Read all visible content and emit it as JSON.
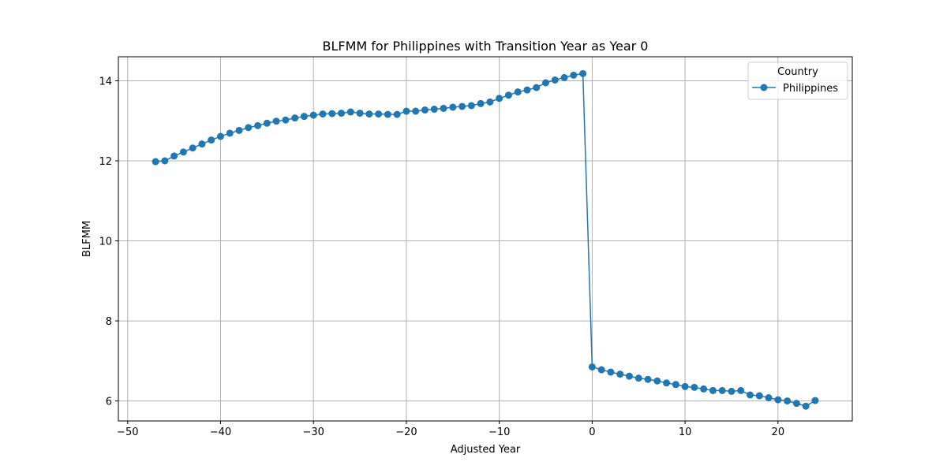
{
  "chart_data": {
    "type": "line",
    "title": "BLFMM for Philippines with Transition Year as Year 0",
    "xlabel": "Adjusted Year",
    "ylabel": "BLFMM",
    "xlim": [
      -51,
      28
    ],
    "ylim": [
      5.5,
      14.6
    ],
    "xticks": [
      -50,
      -40,
      -30,
      -20,
      -10,
      0,
      10,
      20
    ],
    "yticks": [
      6,
      8,
      10,
      12,
      14
    ],
    "grid": true,
    "legend": {
      "title": "Country",
      "placement": "top-right"
    },
    "series": [
      {
        "name": "Philippines",
        "color": "#1f77b4",
        "marker": "circle",
        "x": [
          -47,
          -46,
          -45,
          -44,
          -43,
          -42,
          -41,
          -40,
          -39,
          -38,
          -37,
          -36,
          -35,
          -34,
          -33,
          -32,
          -31,
          -30,
          -29,
          -28,
          -27,
          -26,
          -25,
          -24,
          -23,
          -22,
          -21,
          -20,
          -19,
          -18,
          -17,
          -16,
          -15,
          -14,
          -13,
          -12,
          -11,
          -10,
          -9,
          -8,
          -7,
          -6,
          -5,
          -4,
          -3,
          -2,
          -1,
          0,
          1,
          2,
          3,
          4,
          5,
          6,
          7,
          8,
          9,
          10,
          11,
          12,
          13,
          14,
          15,
          16,
          17,
          18,
          19,
          20,
          21,
          22,
          23,
          24
        ],
        "values": [
          11.98,
          12.0,
          12.12,
          12.22,
          12.32,
          12.42,
          12.52,
          12.61,
          12.69,
          12.76,
          12.83,
          12.88,
          12.94,
          12.99,
          13.02,
          13.07,
          13.11,
          13.14,
          13.17,
          13.18,
          13.19,
          13.22,
          13.19,
          13.17,
          13.17,
          13.16,
          13.16,
          13.24,
          13.24,
          13.27,
          13.29,
          13.31,
          13.34,
          13.36,
          13.38,
          13.43,
          13.47,
          13.56,
          13.64,
          13.72,
          13.77,
          13.83,
          13.95,
          14.02,
          14.08,
          14.14,
          14.18,
          6.85,
          6.78,
          6.72,
          6.67,
          6.62,
          6.57,
          6.54,
          6.5,
          6.45,
          6.41,
          6.36,
          6.34,
          6.3,
          6.26,
          6.26,
          6.24,
          6.26,
          6.15,
          6.13,
          6.08,
          6.03,
          6.0,
          5.94,
          5.87,
          6.01
        ]
      }
    ]
  }
}
